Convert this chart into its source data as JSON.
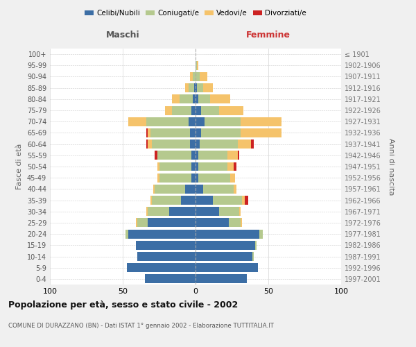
{
  "age_groups": [
    "0-4",
    "5-9",
    "10-14",
    "15-19",
    "20-24",
    "25-29",
    "30-34",
    "35-39",
    "40-44",
    "45-49",
    "50-54",
    "55-59",
    "60-64",
    "65-69",
    "70-74",
    "75-79",
    "80-84",
    "85-89",
    "90-94",
    "95-99",
    "100+"
  ],
  "birth_years": [
    "1997-2001",
    "1992-1996",
    "1987-1991",
    "1982-1986",
    "1977-1981",
    "1972-1976",
    "1967-1971",
    "1962-1966",
    "1957-1961",
    "1952-1956",
    "1947-1951",
    "1942-1946",
    "1937-1941",
    "1932-1936",
    "1927-1931",
    "1922-1926",
    "1917-1921",
    "1912-1916",
    "1907-1911",
    "1902-1906",
    "≤ 1901"
  ],
  "male": {
    "celibi": [
      35,
      47,
      40,
      41,
      46,
      33,
      18,
      10,
      7,
      3,
      3,
      3,
      4,
      4,
      5,
      3,
      2,
      1,
      0,
      0,
      0
    ],
    "coniugati": [
      0,
      0,
      0,
      0,
      2,
      7,
      15,
      20,
      21,
      22,
      22,
      23,
      26,
      27,
      29,
      13,
      9,
      4,
      2,
      0,
      0
    ],
    "vedovi": [
      0,
      0,
      0,
      0,
      0,
      1,
      1,
      1,
      1,
      1,
      1,
      0,
      3,
      2,
      12,
      5,
      5,
      2,
      2,
      0,
      0
    ],
    "divorziati": [
      0,
      0,
      0,
      0,
      0,
      0,
      0,
      0,
      0,
      0,
      0,
      2,
      1,
      1,
      0,
      0,
      0,
      0,
      0,
      0,
      0
    ]
  },
  "female": {
    "nubili": [
      35,
      43,
      39,
      41,
      44,
      23,
      16,
      12,
      5,
      2,
      2,
      2,
      3,
      4,
      6,
      4,
      2,
      1,
      0,
      0,
      0
    ],
    "coniugate": [
      0,
      0,
      1,
      1,
      2,
      8,
      14,
      20,
      21,
      22,
      20,
      20,
      26,
      27,
      25,
      12,
      8,
      4,
      3,
      1,
      0
    ],
    "vedove": [
      0,
      0,
      0,
      0,
      0,
      1,
      1,
      2,
      2,
      3,
      4,
      7,
      9,
      28,
      28,
      17,
      14,
      7,
      5,
      1,
      0
    ],
    "divorziate": [
      0,
      0,
      0,
      0,
      0,
      0,
      0,
      2,
      0,
      0,
      2,
      1,
      2,
      0,
      0,
      0,
      0,
      0,
      0,
      0,
      0
    ]
  },
  "colors": {
    "celibi_nubili": "#3c6ea5",
    "coniugati": "#b5c98e",
    "vedovi": "#f5c36b",
    "divorziati": "#cc2222"
  },
  "xlim": 100,
  "title": "Popolazione per età, sesso e stato civile - 2002",
  "subtitle": "COMUNE DI DURAZZANO (BN) - Dati ISTAT 1° gennaio 2002 - Elaborazione TUTTITALIA.IT",
  "ylabel_left": "Fasce di età",
  "ylabel_right": "Anni di nascita",
  "xlabel_left": "Maschi",
  "xlabel_right": "Femmine",
  "bg_color": "#f0f0f0",
  "plot_bg_color": "#ffffff"
}
